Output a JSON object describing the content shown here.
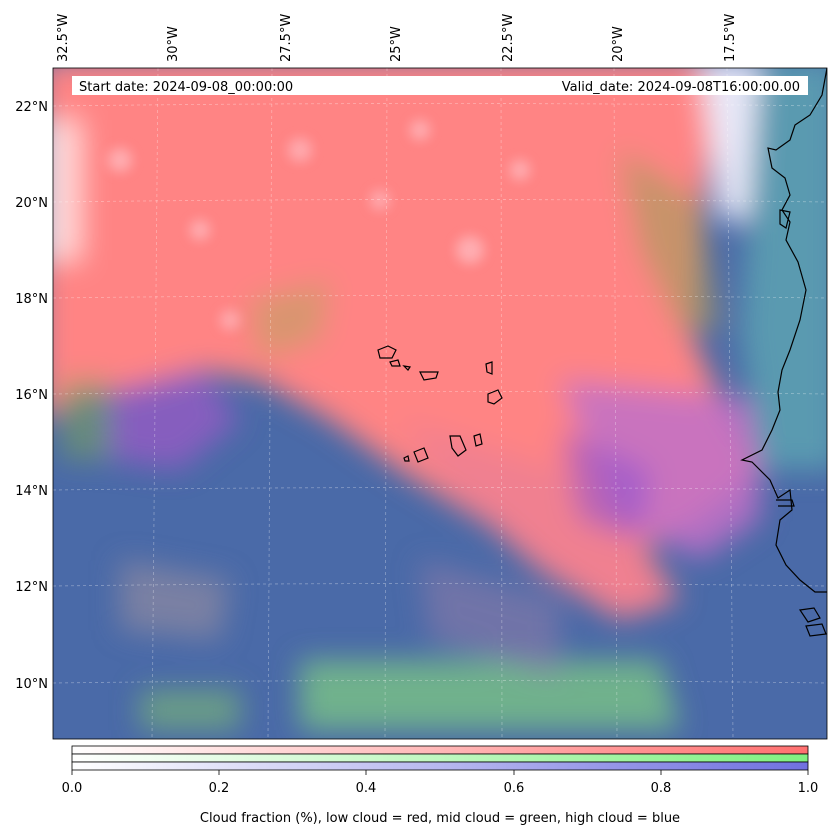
{
  "header": {
    "start_date": "Start date: 2024-09-08_00:00:00",
    "valid_date": "Valid_date: 2024-09-08T16:00:00.00"
  },
  "map": {
    "lon_labels": [
      "32.5°W",
      "30°W",
      "27.5°W",
      "25°W",
      "22.5°W",
      "20°W",
      "17.5°W"
    ],
    "lat_labels": [
      "22°N",
      "20°N",
      "18°N",
      "16°N",
      "14°N",
      "12°N",
      "10°N"
    ],
    "colors": {
      "low_cloud": "#ff8080",
      "mid_cloud": "#80e080",
      "high_cloud": "#4a6aaa",
      "coastline": "#000000"
    }
  },
  "colorbar": {
    "ticks": [
      "0.0",
      "0.2",
      "0.4",
      "0.6",
      "0.8",
      "1.0"
    ],
    "label": "Cloud fraction (%), low cloud = red, mid cloud = green, high cloud = blue",
    "colors": [
      "#ff7070",
      "#80f080",
      "#7070e0"
    ]
  }
}
